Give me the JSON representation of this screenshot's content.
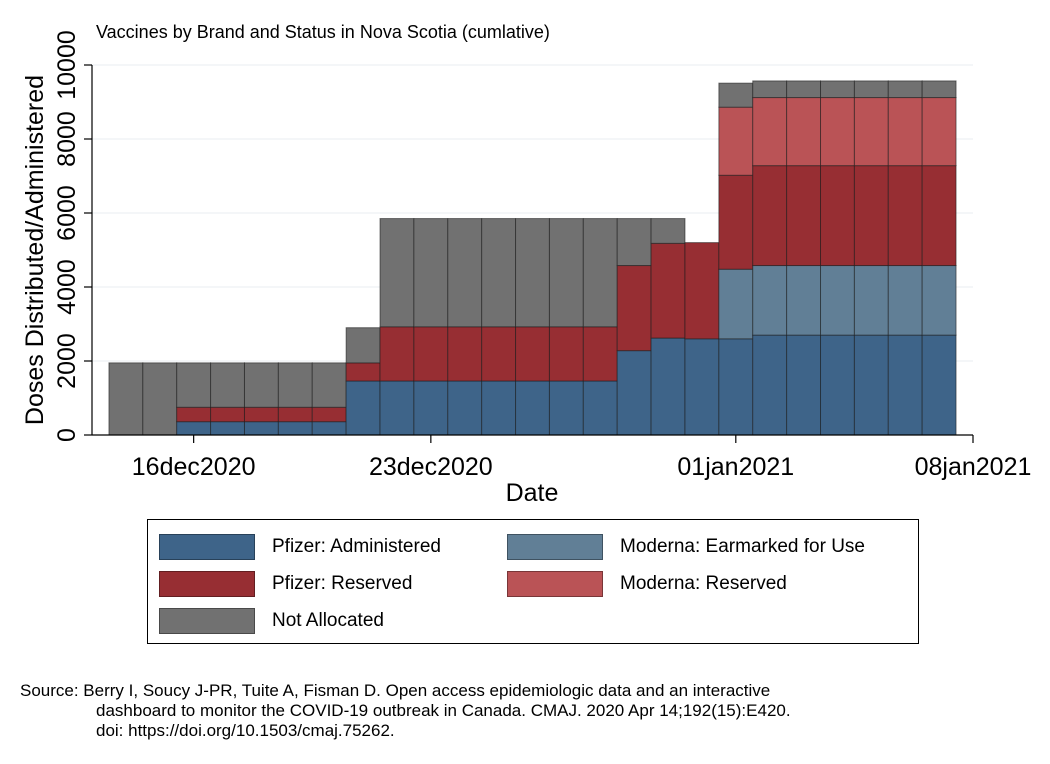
{
  "chart_data": {
    "type": "bar",
    "stacked": true,
    "title": "Vaccines by Brand and Status in Nova Scotia (cumlative)",
    "xlabel": "Date",
    "ylabel": "Doses Distributed/Administered",
    "xlim": [
      "2020-12-13",
      "2021-01-08"
    ],
    "ylim": [
      0,
      10000
    ],
    "yticks": [
      0,
      2000,
      4000,
      6000,
      8000,
      10000
    ],
    "xticks": [
      {
        "date": "2020-12-16",
        "label": "16dec2020"
      },
      {
        "date": "2020-12-23",
        "label": "23dec2020"
      },
      {
        "date": "2021-01-01",
        "label": "01jan2021"
      },
      {
        "date": "2021-01-08",
        "label": "08jan2021"
      }
    ],
    "grid": true,
    "legend_position": "bottom",
    "dates": [
      "2020-12-14",
      "2020-12-15",
      "2020-12-16",
      "2020-12-17",
      "2020-12-18",
      "2020-12-19",
      "2020-12-20",
      "2020-12-21",
      "2020-12-22",
      "2020-12-23",
      "2020-12-24",
      "2020-12-25",
      "2020-12-26",
      "2020-12-27",
      "2020-12-28",
      "2020-12-29",
      "2020-12-30",
      "2020-12-31",
      "2021-01-01",
      "2021-01-02",
      "2021-01-03",
      "2021-01-04",
      "2021-01-05",
      "2021-01-06",
      "2021-01-07"
    ],
    "series": [
      {
        "name": "Pfizer: Administered",
        "color": "#3e6489",
        "values": [
          0,
          0,
          360,
          360,
          360,
          360,
          360,
          1460,
          1460,
          1460,
          1460,
          1460,
          1460,
          1460,
          1460,
          2280,
          2620,
          2600,
          2600,
          2700,
          2700,
          2700,
          2700,
          2700,
          2700
        ]
      },
      {
        "name": "Moderna: Earmarked for Use",
        "color": "#617f96",
        "values": [
          0,
          0,
          0,
          0,
          0,
          0,
          0,
          0,
          0,
          0,
          0,
          0,
          0,
          0,
          0,
          0,
          0,
          0,
          1880,
          1880,
          1880,
          1880,
          1880,
          1880,
          1880
        ]
      },
      {
        "name": "Pfizer: Reserved",
        "color": "#972e33",
        "values": [
          0,
          0,
          390,
          390,
          390,
          390,
          390,
          490,
          1465,
          1465,
          1465,
          1465,
          1465,
          1465,
          1465,
          2300,
          2560,
          2600,
          2540,
          2700,
          2700,
          2700,
          2700,
          2700,
          2700
        ]
      },
      {
        "name": "Moderna: Reserved",
        "color": "#ba5356",
        "values": [
          0,
          0,
          0,
          0,
          0,
          0,
          0,
          0,
          0,
          0,
          0,
          0,
          0,
          0,
          0,
          0,
          0,
          0,
          1840,
          1840,
          1840,
          1840,
          1840,
          1840,
          1840
        ]
      },
      {
        "name": "Not Allocated",
        "color": "#717171",
        "values": [
          1950,
          1950,
          1200,
          1200,
          1200,
          1200,
          1200,
          950,
          2925,
          2925,
          2925,
          2925,
          2925,
          2925,
          2925,
          1270,
          670,
          0,
          650,
          450,
          450,
          450,
          450,
          450,
          450
        ]
      }
    ]
  },
  "legend_order": [
    {
      "name": "Pfizer: Administered",
      "color": "#3e6489"
    },
    {
      "name": "Moderna: Earmarked for Use",
      "color": "#617f96"
    },
    {
      "name": "Pfizer: Reserved",
      "color": "#972e33"
    },
    {
      "name": "Moderna: Reserved",
      "color": "#ba5356"
    },
    {
      "name": "Not Allocated",
      "color": "#717171"
    }
  ],
  "note": {
    "line1": "Source: Berry I, Soucy J-PR, Tuite A, Fisman D. Open access epidemiologic data and an interactive",
    "line2": "dashboard to monitor the COVID-19 outbreak in Canada. CMAJ. 2020 Apr 14;192(15):E420.",
    "line3": "doi: https://doi.org/10.1503/cmaj.75262."
  }
}
